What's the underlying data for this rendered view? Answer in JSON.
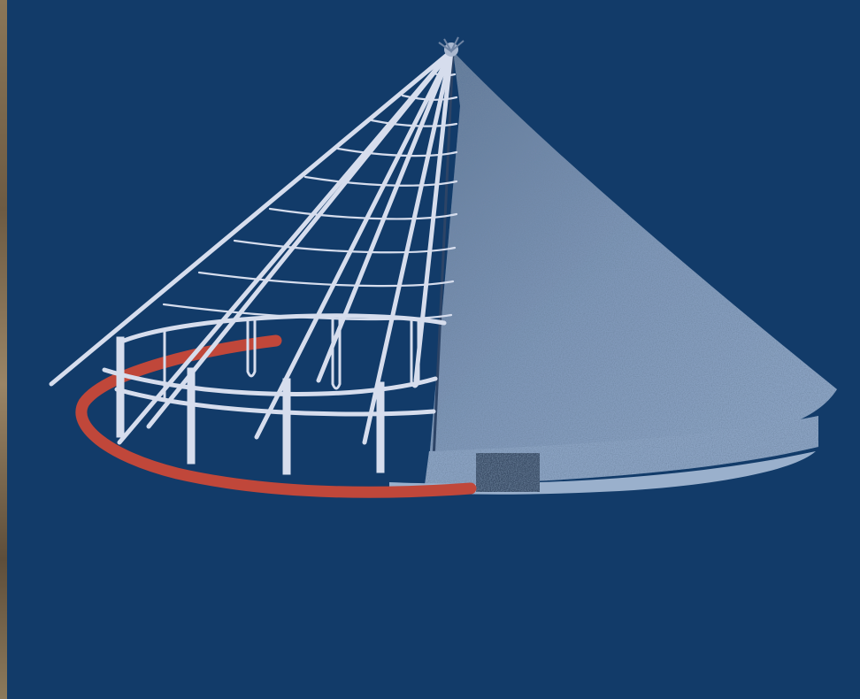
{
  "colors": {
    "background": "#123b69",
    "frame_lines": "#d6dded",
    "thatch_light": "#8da5c4",
    "thatch_dark": "#2a3f5c",
    "wall_band": "#8ba3c2",
    "wall_base": "#9ab0cc",
    "door": "#3a4d66",
    "red_ring": "#c0473a",
    "left_strip": "#7a6a50"
  },
  "diagram": {
    "subject": "conical-roundhouse-cutaway",
    "rafter_count": 8,
    "post_count": 7,
    "purlin_rings": 9
  }
}
